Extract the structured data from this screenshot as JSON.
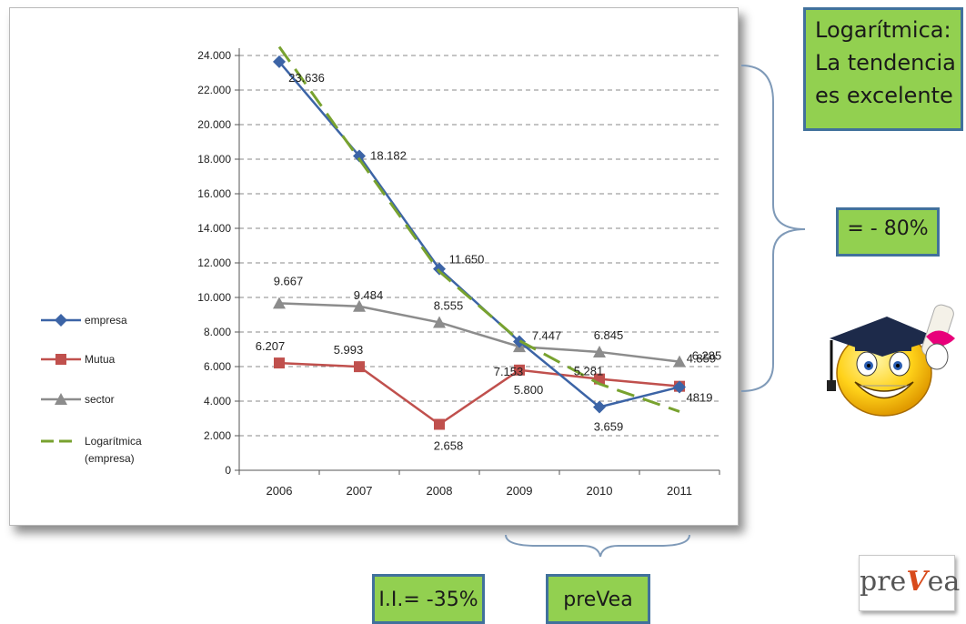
{
  "chart_data": {
    "type": "line",
    "categories": [
      "2006",
      "2007",
      "2008",
      "2009",
      "2010",
      "2011"
    ],
    "y_ticks": [
      "0",
      "2.000",
      "4.000",
      "6.000",
      "8.000",
      "10.000",
      "12.000",
      "14.000",
      "16.000",
      "18.000",
      "20.000",
      "22.000",
      "24.000"
    ],
    "ylim": [
      0,
      24000
    ],
    "grid": "horizontal dashed",
    "legend_position": "left",
    "series": [
      {
        "name": "empresa",
        "values": [
          23636,
          18182,
          11650,
          7447,
          3659,
          4819
        ],
        "labels": [
          "23.636",
          "18.182",
          "11.650",
          "7.447",
          "3.659",
          "4819"
        ],
        "color": "#3c64a6",
        "marker": "diamond"
      },
      {
        "name": "Mutua",
        "values": [
          6207,
          5993,
          2658,
          5800,
          5281,
          4859
        ],
        "labels": [
          "6.207",
          "5.993",
          "2.658",
          "5.800",
          "5.281",
          "4.859"
        ],
        "color": "#c0504d",
        "marker": "square"
      },
      {
        "name": "sector",
        "values": [
          9667,
          9484,
          8555,
          7153,
          6845,
          6285
        ],
        "labels": [
          "9.667",
          "9.484",
          "8.555",
          "7.153",
          "6.845",
          "6.285"
        ],
        "color": "#8c8c8c",
        "marker": "triangle"
      },
      {
        "name": "Logarítmica (empresa)",
        "name_lines": [
          "Logarítmica",
          "(empresa)"
        ],
        "values": [
          24500,
          18000,
          11500,
          7500,
          5000,
          3400
        ],
        "color": "#78a22f",
        "dashed": true
      }
    ]
  },
  "callouts": {
    "main_lines": [
      "Logarítmica:",
      "La tendencia",
      "es excelente"
    ],
    "percent": "= - 80%",
    "ii": "I.I.= -35%",
    "prevea": "preVea"
  },
  "logo": {
    "pre": "pre",
    "v": "V",
    "ea": "ea"
  },
  "icons": {
    "mascot": "graduate-smiley-icon"
  }
}
